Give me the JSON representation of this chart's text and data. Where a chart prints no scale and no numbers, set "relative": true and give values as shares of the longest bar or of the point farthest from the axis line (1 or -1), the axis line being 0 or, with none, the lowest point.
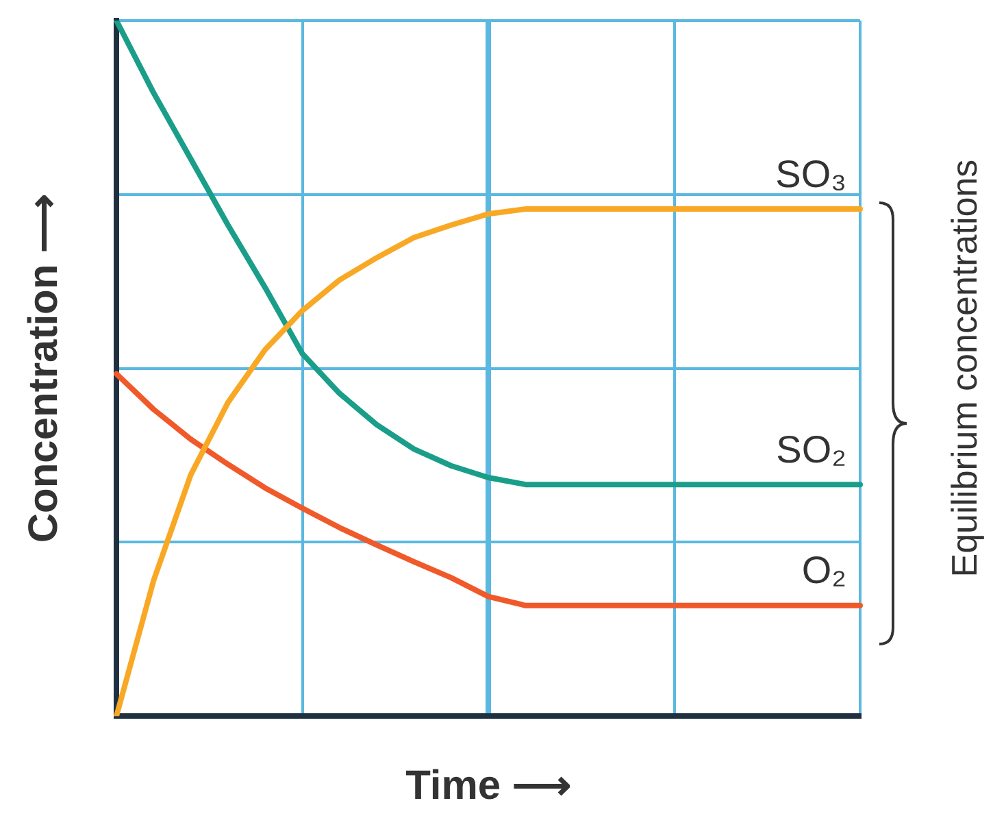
{
  "chart_data": {
    "type": "line",
    "xlabel": "Time ⟶",
    "ylabel": "Concentration ⟶",
    "relative": true,
    "grid": true,
    "legend": false,
    "marker": "none",
    "line_style": "solid",
    "categories": [
      null,
      null,
      null,
      null,
      null,
      null,
      null,
      null,
      null,
      null,
      null,
      null,
      null,
      null,
      null,
      null,
      null,
      null,
      null,
      null,
      null
    ],
    "series": [
      {
        "name": "SO₃",
        "color": "#f9a825",
        "values": [
          0,
          0.195,
          0.347,
          0.451,
          0.527,
          0.583,
          0.627,
          0.659,
          0.688,
          0.706,
          0.722,
          0.729,
          0.729,
          0.729,
          0.729,
          0.729,
          0.729,
          0.729,
          0.729,
          0.729,
          0.729
        ]
      },
      {
        "name": "SO₂",
        "color": "#1a9e8a",
        "values": [
          1,
          0.896,
          0.801,
          0.706,
          0.616,
          0.521,
          0.464,
          0.419,
          0.384,
          0.36,
          0.343,
          0.333,
          0.333,
          0.333,
          0.333,
          0.333,
          0.333,
          0.333,
          0.333,
          0.333,
          0.333
        ]
      },
      {
        "name": "O₂",
        "color": "#f0592a",
        "values": [
          0.492,
          0.441,
          0.398,
          0.362,
          0.328,
          0.299,
          0.271,
          0.246,
          0.222,
          0.199,
          0.172,
          0.159,
          0.159,
          0.159,
          0.159,
          0.159,
          0.159,
          0.159,
          0.159,
          0.159,
          0.159
        ]
      }
    ],
    "annotations": [
      "Equilibrium concentrations"
    ]
  }
}
